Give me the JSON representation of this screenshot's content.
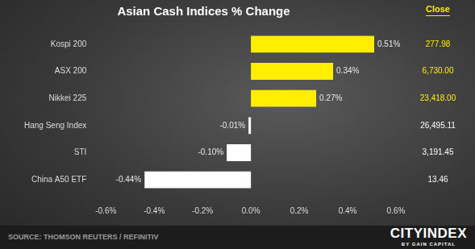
{
  "chart_data": {
    "type": "bar",
    "title": "Asian Cash Indices % Change",
    "orientation": "horizontal",
    "categories": [
      "Kospi 200",
      "ASX 200",
      "Nikkei 225",
      "Hang Seng Index",
      "STI",
      "China A50 ETF"
    ],
    "values": [
      0.51,
      0.34,
      0.27,
      -0.01,
      -0.1,
      -0.44
    ],
    "value_labels": [
      "0.51%",
      "0.34%",
      "0.27%",
      "-0.01%",
      "-0.10%",
      "-0.44%"
    ],
    "data_labels": true,
    "colors": [
      "#ffee00",
      "#ffee00",
      "#ffee00",
      "#ffffff",
      "#ffffff",
      "#ffffff"
    ],
    "xlim": [
      -0.6,
      0.6
    ],
    "xticks": [
      {
        "value": -0.6,
        "label": "-0.6%"
      },
      {
        "value": -0.4,
        "label": "-0.4%"
      },
      {
        "value": -0.2,
        "label": "-0.2%"
      },
      {
        "value": 0,
        "label": "0.0%"
      },
      {
        "value": 0.2,
        "label": "0.2%"
      },
      {
        "value": 0.4,
        "label": "0.4%"
      },
      {
        "value": 0.6,
        "label": "0.6%"
      }
    ],
    "grid": false,
    "close_title": "Close",
    "close_labels": [
      "277.98",
      "6,730.00",
      "23,418.00",
      "26,495.11",
      "3,191.45",
      "13.46"
    ],
    "source": "SOURCE: THOMSON REUTERS / REFINITIV",
    "logo": "CITYINDEX",
    "logo_subtitle": "BY GAIN CAPITAL"
  }
}
